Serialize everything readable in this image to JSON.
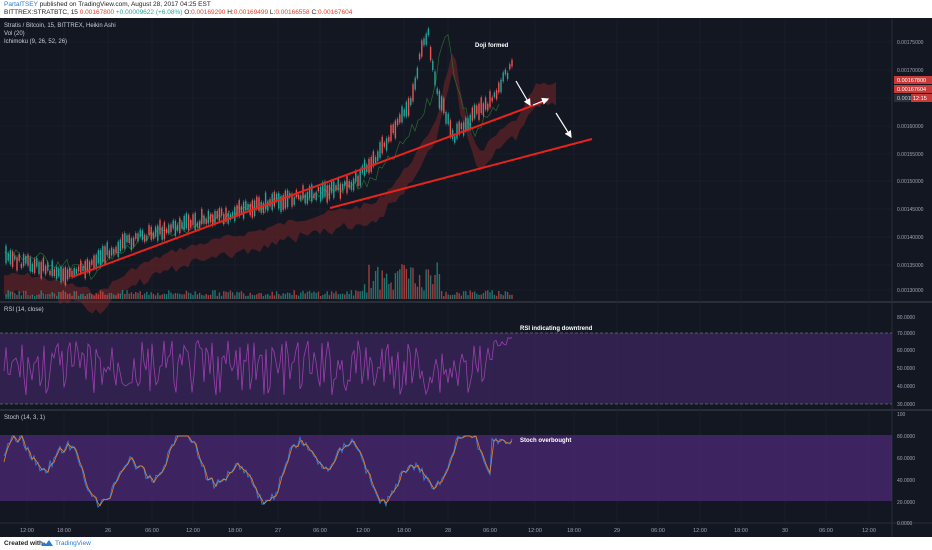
{
  "header": {
    "author": "PartalTSEY",
    "published": "published on TradingView.com, August 28, 2017 04:25 EST",
    "symbol": "BITTREX:STRATBTC, 15",
    "last": "0.00167800",
    "change": "+0.00009622 (+6.08%)",
    "o_label": "O:",
    "o_value": "0.00169290",
    "h_label": "H:",
    "h_value": "0.00169499",
    "l_label": "L:",
    "l_value": "0.00166558",
    "c_label": "C:",
    "c_value": "0.00167604"
  },
  "legends": {
    "main": "Stratis / Bitcoin, 15, BITTREX, Heikin Ashi",
    "vol": "Vol (20)",
    "ichimoku": "Ichimoku (9, 26, 52, 26)",
    "rsi": "RSI (14, close)",
    "stoch": "Stoch (14, 3, 1)"
  },
  "annotations": {
    "doji": "Doji formed",
    "rsi": "RSI indicating downtrend",
    "stoch": "Stoch overbought"
  },
  "price_scale": {
    "ticks": [
      "0.00175000",
      "0.00170000",
      "0.00165000",
      "0.00160000",
      "0.00155000",
      "0.00150000",
      "0.00145000",
      "0.00140000",
      "0.00135000",
      "0.00130000"
    ],
    "badge_last": "0.00167800",
    "badge_close": "0.00167604",
    "badge_ichi": "0.0016",
    "badge_time": "12:15"
  },
  "rsi_scale": [
    "80.0000",
    "70.0000",
    "60.0000",
    "50.0000",
    "40.0000",
    "30.0000"
  ],
  "stoch_scale": [
    "100",
    "80.0000",
    "60.0000",
    "40.0000",
    "20.0000",
    "0.0000"
  ],
  "time_axis": [
    "12:00",
    "18:00",
    "26",
    "06:00",
    "12:00",
    "18:00",
    "27",
    "06:00",
    "12:00",
    "18:00",
    "28",
    "06:00",
    "12:00",
    "18:00",
    "29",
    "06:00",
    "12:00",
    "18:00",
    "30",
    "06:00",
    "12:00"
  ],
  "footer": {
    "created": "Created with",
    "brand": "TradingView"
  },
  "colors": {
    "background": "#131722",
    "trendline": "#e8231c",
    "up": "#26a69a",
    "down": "#ef5350",
    "rsi_band": "#4b2a73",
    "stoch_band": "#5a2d8c",
    "price_badge": "#c83a3a"
  }
}
